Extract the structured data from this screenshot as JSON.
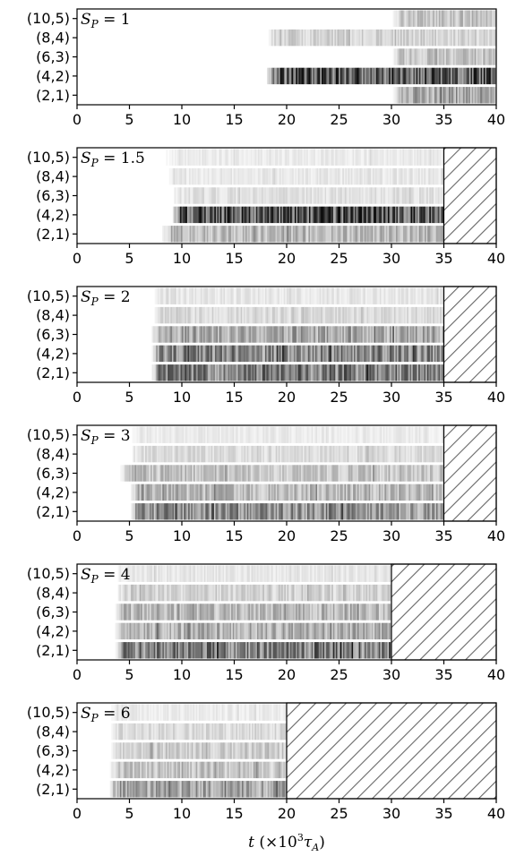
{
  "figure": {
    "xlabel_var": "t",
    "xlabel_unit_prefix": "(×10",
    "xlabel_unit_exp": "3",
    "xlabel_unit_sym": "τ",
    "xlabel_unit_sub": "A",
    "xlabel_unit_close": ")"
  },
  "chart_data": [
    {
      "type": "heatmap",
      "title_var": "S",
      "title_sub": "P",
      "title_value": "= 1",
      "xlim": [
        0,
        40
      ],
      "x_ticks": [
        "0",
        "5",
        "10",
        "15",
        "20",
        "25",
        "30",
        "35",
        "40"
      ],
      "y_ticks": [
        "(10,5)",
        "(8,4)",
        "(6,3)",
        "(4,2)",
        "(2,1)"
      ],
      "hatched_from": null,
      "rows": [
        {
          "mode": "(10,5)",
          "onset": 30,
          "intensity": 0.3
        },
        {
          "mode": "(8,4)",
          "onset": 18,
          "intensity": 0.22
        },
        {
          "mode": "(6,3)",
          "onset": 30,
          "intensity": 0.3
        },
        {
          "mode": "(4,2)",
          "onset": 18,
          "intensity": 0.85
        },
        {
          "mode": "(2,1)",
          "onset": 30,
          "intensity": 0.45
        }
      ]
    },
    {
      "type": "heatmap",
      "title_var": "S",
      "title_sub": "P",
      "title_value": "= 1.5",
      "xlim": [
        0,
        40
      ],
      "x_ticks": [
        "0",
        "5",
        "10",
        "15",
        "20",
        "25",
        "30",
        "35",
        "40"
      ],
      "y_ticks": [
        "(10,5)",
        "(8,4)",
        "(6,3)",
        "(4,2)",
        "(2,1)"
      ],
      "hatched_from": 35,
      "rows": [
        {
          "mode": "(10,5)",
          "onset": 8.5,
          "intensity": 0.1
        },
        {
          "mode": "(8,4)",
          "onset": 8.5,
          "intensity": 0.12
        },
        {
          "mode": "(6,3)",
          "onset": 9,
          "intensity": 0.15
        },
        {
          "mode": "(4,2)",
          "onset": 9,
          "intensity": 0.85
        },
        {
          "mode": "(2,1)",
          "onset": 8,
          "intensity": 0.35
        }
      ]
    },
    {
      "type": "heatmap",
      "title_var": "S",
      "title_sub": "P",
      "title_value": "= 2",
      "xlim": [
        0,
        40
      ],
      "x_ticks": [
        "0",
        "5",
        "10",
        "15",
        "20",
        "25",
        "30",
        "35",
        "40"
      ],
      "y_ticks": [
        "(10,5)",
        "(8,4)",
        "(6,3)",
        "(4,2)",
        "(2,1)"
      ],
      "hatched_from": 35,
      "rows": [
        {
          "mode": "(10,5)",
          "onset": 7,
          "intensity": 0.12
        },
        {
          "mode": "(8,4)",
          "onset": 7,
          "intensity": 0.18
        },
        {
          "mode": "(6,3)",
          "onset": 7,
          "intensity": 0.45
        },
        {
          "mode": "(4,2)",
          "onset": 7,
          "intensity": 0.6
        },
        {
          "mode": "(2,1)",
          "onset": 7,
          "intensity": 0.65
        }
      ]
    },
    {
      "type": "heatmap",
      "title_var": "S",
      "title_sub": "P",
      "title_value": "= 3",
      "xlim": [
        0,
        40
      ],
      "x_ticks": [
        "0",
        "5",
        "10",
        "15",
        "20",
        "25",
        "30",
        "35",
        "40"
      ],
      "y_ticks": [
        "(10,5)",
        "(8,4)",
        "(6,3)",
        "(4,2)",
        "(2,1)"
      ],
      "hatched_from": 35,
      "rows": [
        {
          "mode": "(10,5)",
          "onset": 5,
          "intensity": 0.1
        },
        {
          "mode": "(8,4)",
          "onset": 5,
          "intensity": 0.18
        },
        {
          "mode": "(6,3)",
          "onset": 4,
          "intensity": 0.3
        },
        {
          "mode": "(4,2)",
          "onset": 5,
          "intensity": 0.35
        },
        {
          "mode": "(2,1)",
          "onset": 5,
          "intensity": 0.55
        }
      ]
    },
    {
      "type": "heatmap",
      "title_var": "S",
      "title_sub": "P",
      "title_value": "= 4",
      "xlim": [
        0,
        40
      ],
      "x_ticks": [
        "0",
        "5",
        "10",
        "15",
        "20",
        "25",
        "30",
        "35",
        "40"
      ],
      "y_ticks": [
        "(10,5)",
        "(8,4)",
        "(6,3)",
        "(4,2)",
        "(2,1)"
      ],
      "hatched_from": 30,
      "rows": [
        {
          "mode": "(10,5)",
          "onset": 3.5,
          "intensity": 0.12
        },
        {
          "mode": "(8,4)",
          "onset": 3.5,
          "intensity": 0.22
        },
        {
          "mode": "(6,3)",
          "onset": 3.5,
          "intensity": 0.35
        },
        {
          "mode": "(4,2)",
          "onset": 3.5,
          "intensity": 0.4
        },
        {
          "mode": "(2,1)",
          "onset": 3.5,
          "intensity": 0.65
        }
      ]
    },
    {
      "type": "heatmap",
      "title_var": "S",
      "title_sub": "P",
      "title_value": "= 6",
      "xlim": [
        0,
        40
      ],
      "x_ticks": [
        "0",
        "5",
        "10",
        "15",
        "20",
        "25",
        "30",
        "35",
        "40"
      ],
      "y_ticks": [
        "(10,5)",
        "(8,4)",
        "(6,3)",
        "(4,2)",
        "(2,1)"
      ],
      "hatched_from": 20,
      "rows": [
        {
          "mode": "(10,5)",
          "onset": 3,
          "intensity": 0.1
        },
        {
          "mode": "(8,4)",
          "onset": 3,
          "intensity": 0.18
        },
        {
          "mode": "(6,3)",
          "onset": 3,
          "intensity": 0.25
        },
        {
          "mode": "(4,2)",
          "onset": 3,
          "intensity": 0.3
        },
        {
          "mode": "(2,1)",
          "onset": 3,
          "intensity": 0.45
        }
      ]
    }
  ]
}
